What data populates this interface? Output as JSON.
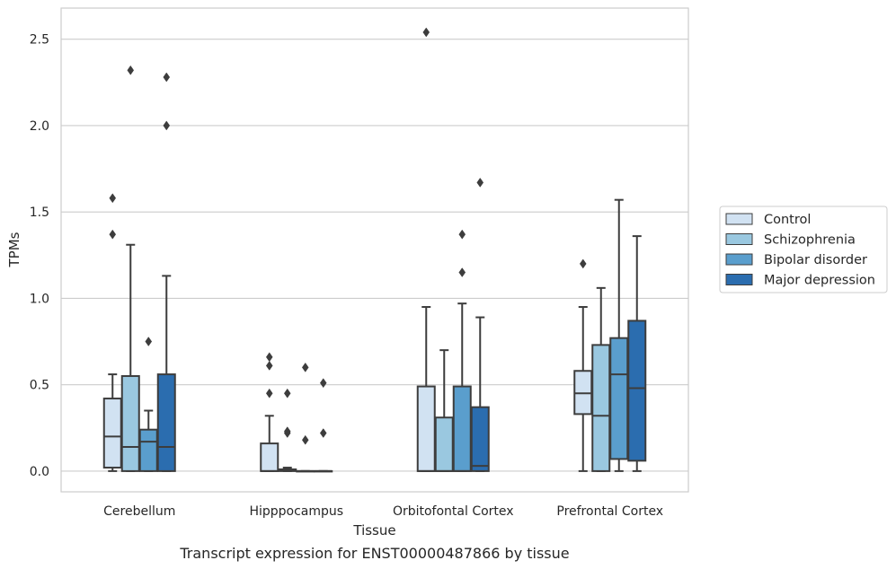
{
  "caption": "Transcript expression for ENST00000487866 by tissue",
  "chart_data": {
    "type": "boxplot",
    "xlabel": "Tissue",
    "ylabel": "TPMs",
    "ylim": [
      -0.12,
      2.68
    ],
    "yticks": [
      "0.0",
      "0.5",
      "1.0",
      "1.5",
      "2.0",
      "2.5"
    ],
    "ytick_values": [
      0,
      0.5,
      1.0,
      1.5,
      2.0,
      2.5
    ],
    "grid": "horizontal",
    "legend_position": "right",
    "categories": [
      "Cerebellum",
      "Hipppocampus",
      "Orbitofontal Cortex",
      "Prefrontal Cortex"
    ],
    "series": [
      {
        "name": "Control",
        "color": "#d1e2f2",
        "boxes": [
          {
            "whisker_low": 0.0,
            "q1": 0.02,
            "median": 0.2,
            "q3": 0.42,
            "whisker_high": 0.56,
            "outliers": [
              1.37,
              1.58
            ]
          },
          {
            "whisker_low": 0.0,
            "q1": 0.0,
            "median": 0.0,
            "q3": 0.16,
            "whisker_high": 0.32,
            "outliers": [
              0.45,
              0.61,
              0.66
            ]
          },
          {
            "whisker_low": 0.0,
            "q1": 0.0,
            "median": 0.0,
            "q3": 0.49,
            "whisker_high": 0.95,
            "outliers": [
              2.54
            ]
          },
          {
            "whisker_low": 0.0,
            "q1": 0.33,
            "median": 0.45,
            "q3": 0.58,
            "whisker_high": 0.95,
            "outliers": [
              1.2
            ]
          }
        ]
      },
      {
        "name": "Schizophrenia",
        "color": "#9ac8e0",
        "boxes": [
          {
            "whisker_low": 0.0,
            "q1": 0.0,
            "median": 0.14,
            "q3": 0.55,
            "whisker_high": 1.31,
            "outliers": [
              2.32
            ]
          },
          {
            "whisker_low": 0.0,
            "q1": 0.0,
            "median": 0.01,
            "q3": 0.01,
            "whisker_high": 0.02,
            "outliers": [
              0.22,
              0.23,
              0.45
            ]
          },
          {
            "whisker_low": 0.0,
            "q1": 0.0,
            "median": 0.0,
            "q3": 0.31,
            "whisker_high": 0.7,
            "outliers": []
          },
          {
            "whisker_low": 0.0,
            "q1": 0.0,
            "median": 0.32,
            "q3": 0.73,
            "whisker_high": 1.06,
            "outliers": []
          }
        ]
      },
      {
        "name": "Bipolar disorder",
        "color": "#5a9ecd",
        "boxes": [
          {
            "whisker_low": 0.0,
            "q1": 0.0,
            "median": 0.17,
            "q3": 0.24,
            "whisker_high": 0.35,
            "outliers": [
              0.75
            ]
          },
          {
            "whisker_low": 0.0,
            "q1": 0.0,
            "median": 0.0,
            "q3": 0.0,
            "whisker_high": 0.0,
            "outliers": [
              0.18,
              0.6
            ]
          },
          {
            "whisker_low": 0.0,
            "q1": 0.0,
            "median": 0.0,
            "q3": 0.49,
            "whisker_high": 0.97,
            "outliers": [
              1.15,
              1.37
            ]
          },
          {
            "whisker_low": 0.0,
            "q1": 0.07,
            "median": 0.56,
            "q3": 0.77,
            "whisker_high": 1.57,
            "outliers": []
          }
        ]
      },
      {
        "name": "Major depression",
        "color": "#2b6daf",
        "boxes": [
          {
            "whisker_low": 0.0,
            "q1": 0.0,
            "median": 0.14,
            "q3": 0.56,
            "whisker_high": 1.13,
            "outliers": [
              2.0,
              2.28
            ]
          },
          {
            "whisker_low": 0.0,
            "q1": 0.0,
            "median": 0.0,
            "q3": 0.0,
            "whisker_high": 0.0,
            "outliers": [
              0.22,
              0.51
            ]
          },
          {
            "whisker_low": 0.0,
            "q1": 0.0,
            "median": 0.03,
            "q3": 0.37,
            "whisker_high": 0.89,
            "outliers": [
              1.67
            ]
          },
          {
            "whisker_low": 0.0,
            "q1": 0.06,
            "median": 0.48,
            "q3": 0.87,
            "whisker_high": 1.36,
            "outliers": []
          }
        ]
      }
    ]
  }
}
